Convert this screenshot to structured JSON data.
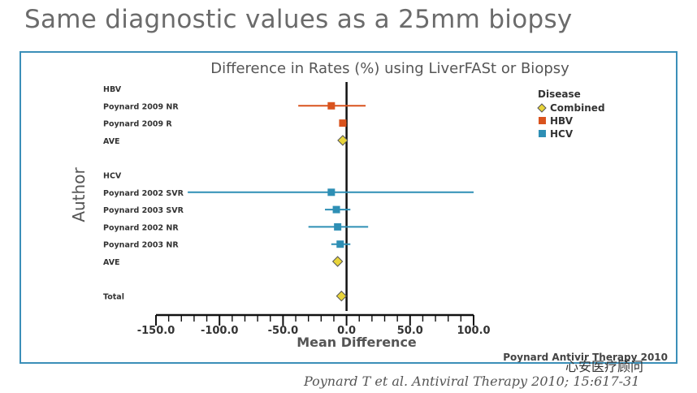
{
  "slide": {
    "title": "Same diagnostic values as a 25mm biopsy",
    "citation": "Poynard T et al. Antiviral Therapy 2010; 15:617-31",
    "watermark": "心安医疗顾问"
  },
  "chart_data": {
    "type": "forest",
    "title": "Difference in Rates (%) using LiverFASt or Biopsy",
    "xlabel": "Mean Difference",
    "ylabel": "Author",
    "xlim": [
      -150,
      100
    ],
    "xticks": [
      "-150.0",
      "-100.0",
      "-50.0",
      "0.0",
      "50.0",
      "100.0"
    ],
    "tick_values": [
      -150,
      -100,
      -50,
      0,
      50,
      100
    ],
    "source_note": "Poynard Antivir Therapy 2010",
    "legend": {
      "title": "Disease",
      "placement": "top-right",
      "items": [
        {
          "label": "Combined",
          "marker": "diamond",
          "color": "#e8d43a"
        },
        {
          "label": "HBV",
          "marker": "square",
          "color": "#d9531e"
        },
        {
          "label": "HCV",
          "marker": "square",
          "color": "#2e8fb5"
        }
      ]
    },
    "rows": [
      {
        "label": "HBV",
        "kind": "header"
      },
      {
        "label": "Poynard 2009 NR",
        "group": "HBV",
        "mean": -12,
        "lo": -38,
        "hi": 15
      },
      {
        "label": "Poynard 2009 R",
        "group": "HBV",
        "mean": -3,
        "lo": -5,
        "hi": 0
      },
      {
        "label": "AVE",
        "group": "Combined",
        "mean": -3
      },
      {
        "label": "",
        "kind": "spacer"
      },
      {
        "label": "HCV",
        "kind": "header"
      },
      {
        "label": "Poynard 2002 SVR",
        "group": "HCV",
        "mean": -12,
        "lo": -125,
        "hi": 100
      },
      {
        "label": "Poynard 2003 SVR",
        "group": "HCV",
        "mean": -8,
        "lo": -17,
        "hi": 3
      },
      {
        "label": "Poynard 2002 NR",
        "group": "HCV",
        "mean": -7,
        "lo": -30,
        "hi": 17
      },
      {
        "label": "Poynard 2003 NR",
        "group": "HCV",
        "mean": -5,
        "lo": -12,
        "hi": 3
      },
      {
        "label": "AVE",
        "group": "Combined",
        "mean": -7
      },
      {
        "label": "",
        "kind": "spacer"
      },
      {
        "label": "Total",
        "group": "Combined",
        "mean": -4
      }
    ]
  }
}
